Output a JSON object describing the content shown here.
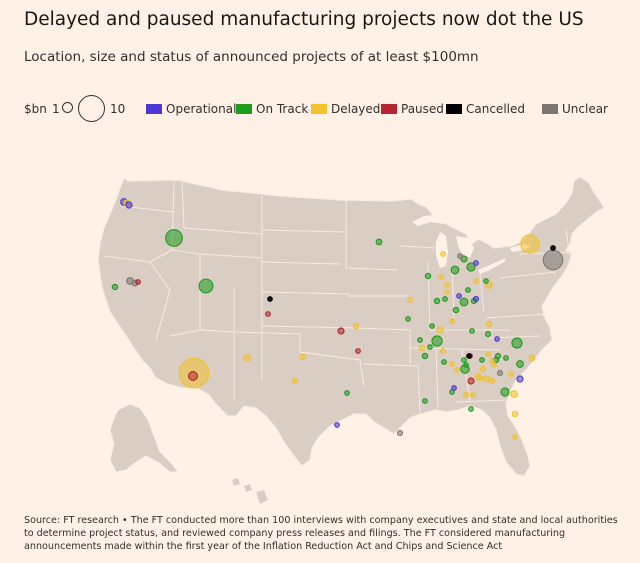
{
  "title": "Delayed and paused manufacturing projects now dot the US",
  "subtitle": "Location, size and status of announced projects of at least $100mn",
  "legend": {
    "size_unit": "$bn",
    "size_small": "1",
    "size_large": "10",
    "statuses": [
      {
        "label": "Operational",
        "color": "#4d36d4"
      },
      {
        "label": "On Track",
        "color": "#1e9c1e"
      },
      {
        "label": "Delayed",
        "color": "#f2c12e"
      },
      {
        "label": "Paused",
        "color": "#b3262f"
      },
      {
        "label": "Cancelled",
        "color": "#000000"
      },
      {
        "label": "Unclear",
        "color": "#7a7672"
      }
    ]
  },
  "map": {
    "land_color": "#d9cdc4",
    "border_color": "#f7ebe0",
    "water_color": "#fff1e5"
  },
  "projects": [
    {
      "status": "Delayed",
      "value_bn": 12
    },
    {
      "status": "Paused",
      "value_bn": 1.1
    },
    {
      "status": "On Track",
      "value_bn": 3.8
    },
    {
      "status": "On Track",
      "value_bn": 2.6
    },
    {
      "status": "Delayed",
      "value_bn": 4.6
    },
    {
      "status": "Unclear",
      "value_bn": 5.2
    },
    {
      "status": "Cancelled",
      "value_bn": 0.12
    },
    {
      "status": "On Track",
      "value_bn": 1.4
    },
    {
      "status": "Operational",
      "value_bn": 0.6
    },
    {
      "status": "Delayed",
      "value_bn": 0.5
    },
    {
      "status": "Operational",
      "value_bn": 0.5
    },
    {
      "status": "On Track",
      "value_bn": 0.4
    },
    {
      "status": "Paused",
      "value_bn": 0.3
    },
    {
      "status": "Unclear",
      "value_bn": 0.6
    },
    {
      "status": "Unclear",
      "value_bn": 0.45
    },
    {
      "status": "On Track",
      "value_bn": 0.45
    },
    {
      "status": "Cancelled",
      "value_bn": 0.12
    },
    {
      "status": "Paused",
      "value_bn": 0.3
    },
    {
      "status": "Delayed",
      "value_bn": 0.4
    },
    {
      "status": "Paused",
      "value_bn": 0.5
    },
    {
      "status": "Delayed",
      "value_bn": 0.6
    },
    {
      "status": "Paused",
      "value_bn": 0.3
    },
    {
      "status": "Delayed",
      "value_bn": 0.4
    },
    {
      "status": "Delayed",
      "value_bn": 0.35
    },
    {
      "status": "On Track",
      "value_bn": 0.2
    },
    {
      "status": "Operational",
      "value_bn": 0.15
    },
    {
      "status": "Unclear",
      "value_bn": 0.35
    },
    {
      "status": "On Track",
      "value_bn": 0.4
    },
    {
      "status": "Delayed",
      "value_bn": 0.3
    },
    {
      "status": "Delayed",
      "value_bn": 0.3
    },
    {
      "status": "On Track",
      "value_bn": 0.8
    },
    {
      "status": "On Track",
      "value_bn": 0.9
    },
    {
      "status": "Operational",
      "value_bn": 0.3
    },
    {
      "status": "On Track",
      "value_bn": 0.5
    },
    {
      "status": "Delayed",
      "value_bn": 0.6
    },
    {
      "status": "On Track",
      "value_bn": 0.3
    },
    {
      "status": "On Track",
      "value_bn": 0.35
    },
    {
      "status": "Delayed",
      "value_bn": 0.3
    },
    {
      "status": "On Track",
      "value_bn": 0.4
    },
    {
      "status": "On Track",
      "value_bn": 0.3
    },
    {
      "status": "Operational",
      "value_bn": 0.3
    },
    {
      "status": "On Track",
      "value_bn": 1.4
    },
    {
      "status": "Delayed",
      "value_bn": 0.4
    },
    {
      "status": "On Track",
      "value_bn": 0.4
    },
    {
      "status": "Paused",
      "value_bn": 0.3
    },
    {
      "status": "Delayed",
      "value_bn": 0.5
    },
    {
      "status": "On Track",
      "value_bn": 0.3
    },
    {
      "status": "Delayed",
      "value_bn": 0.3
    },
    {
      "status": "Delayed",
      "value_bn": 0.3
    },
    {
      "status": "On Track",
      "value_bn": 0.2
    },
    {
      "status": "On Track",
      "value_bn": 0.3
    },
    {
      "status": "Cancelled",
      "value_bn": 0.1
    },
    {
      "status": "Delayed",
      "value_bn": 0.4
    },
    {
      "status": "On Track",
      "value_bn": 0.3
    },
    {
      "status": "Delayed",
      "value_bn": 0.3
    },
    {
      "status": "On Track",
      "value_bn": 0.35
    },
    {
      "status": "On Track",
      "value_bn": 0.3
    },
    {
      "status": "On Track",
      "value_bn": 1.0
    },
    {
      "status": "Paused",
      "value_bn": 0.5
    },
    {
      "status": "Delayed",
      "value_bn": 0.5
    },
    {
      "status": "On Track",
      "value_bn": 0.9
    },
    {
      "status": "Delayed",
      "value_bn": 0.6
    },
    {
      "status": "On Track",
      "value_bn": 0.6
    },
    {
      "status": "Operational",
      "value_bn": 0.5
    },
    {
      "status": "Delayed",
      "value_bn": 0.45
    },
    {
      "status": "On Track",
      "value_bn": 0.8
    },
    {
      "status": "Operational",
      "value_bn": 0.35
    },
    {
      "status": "Delayed",
      "value_bn": 0.4
    },
    {
      "status": "Delayed",
      "value_bn": 0.3
    },
    {
      "status": "Delayed",
      "value_bn": 0.5
    },
    {
      "status": "Unclear",
      "value_bn": 0.25
    },
    {
      "status": "On Track",
      "value_bn": 0.3
    },
    {
      "status": "Delayed",
      "value_bn": 0.25
    },
    {
      "status": "On Track",
      "value_bn": 0.3
    },
    {
      "status": "On Track",
      "value_bn": 0.3
    },
    {
      "status": "On Track",
      "value_bn": 0.2
    },
    {
      "status": "Delayed",
      "value_bn": 0.3
    },
    {
      "status": "On Track",
      "value_bn": 0.4
    },
    {
      "status": "Delayed",
      "value_bn": 0.25
    },
    {
      "status": "Delayed",
      "value_bn": 0.3
    },
    {
      "status": "Delayed",
      "value_bn": 0.25
    },
    {
      "status": "Unclear",
      "value_bn": 0.35
    },
    {
      "status": "Delayed",
      "value_bn": 0.35
    },
    {
      "status": "Delayed",
      "value_bn": 0.4
    },
    {
      "status": "On Track",
      "value_bn": 0.2
    },
    {
      "status": "Operational",
      "value_bn": 0.2
    },
    {
      "status": "Delayed",
      "value_bn": 0.3
    },
    {
      "status": "On Track",
      "value_bn": 0.3
    },
    {
      "status": "Delayed",
      "value_bn": 0.3
    },
    {
      "status": "Operational",
      "value_bn": 0.2
    },
    {
      "status": "On Track",
      "value_bn": 0.35
    },
    {
      "status": "Delayed",
      "value_bn": 0.4
    },
    {
      "status": "On Track",
      "value_bn": 0.2
    },
    {
      "status": "On Track",
      "value_bn": 0.2
    },
    {
      "status": "Delayed",
      "value_bn": 0.25
    },
    {
      "status": "On Track",
      "value_bn": 0.3
    },
    {
      "status": "Delayed",
      "value_bn": 0.2
    },
    {
      "status": "On Track",
      "value_bn": 0.4
    },
    {
      "status": "Delayed",
      "value_bn": 0.25
    }
  ],
  "source": "Source: FT research • The FT conducted more than 100 interviews with company executives and state and local authorities to determine project status, and reviewed company press releases and filings. The FT considered manufacturing announcements made within the first year of the Inflation Reduction Act and Chips and Science Act"
}
